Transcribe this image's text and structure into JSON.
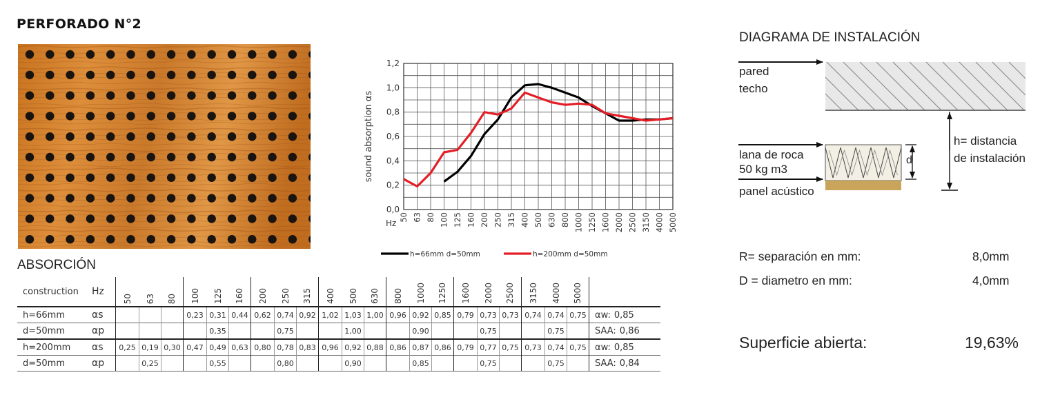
{
  "title": "PERFORADO N°2",
  "absorcion_heading": "ABSORCIÓN",
  "chart_data": {
    "type": "line",
    "ylabel": "sound absorption αs",
    "xlabel": "Hz",
    "ylim": [
      0,
      1.2
    ],
    "yticks": [
      "0,0",
      "0,2",
      "0,4",
      "0,6",
      "0,8",
      "1,0",
      "1,2"
    ],
    "categories": [
      "50",
      "63",
      "80",
      "100",
      "125",
      "160",
      "200",
      "250",
      "315",
      "400",
      "500",
      "630",
      "800",
      "1000",
      "1250",
      "1600",
      "2000",
      "2500",
      "3150",
      "4000",
      "5000"
    ],
    "series": [
      {
        "name": "h=66mm d=50mm",
        "color": "#000000",
        "values": [
          null,
          null,
          null,
          0.23,
          0.31,
          0.44,
          0.62,
          0.74,
          0.92,
          1.02,
          1.03,
          1.0,
          0.96,
          0.92,
          0.85,
          0.79,
          0.73,
          0.73,
          0.74,
          0.74,
          0.75
        ]
      },
      {
        "name": "h=200mm d=50mm",
        "color": "#e41e26",
        "values": [
          0.25,
          0.19,
          0.3,
          0.47,
          0.49,
          0.63,
          0.8,
          0.78,
          0.83,
          0.96,
          0.92,
          0.88,
          0.86,
          0.87,
          0.86,
          0.79,
          0.77,
          0.75,
          0.73,
          0.74,
          0.75
        ]
      }
    ],
    "legend_position": "bottom"
  },
  "table": {
    "construction_label": "construction",
    "hz_label": "Hz",
    "frequencies": [
      "50",
      "63",
      "80",
      "100",
      "125",
      "160",
      "200",
      "250",
      "315",
      "400",
      "500",
      "630",
      "800",
      "1000",
      "1250",
      "1600",
      "2000",
      "2500",
      "3150",
      "4000",
      "5000"
    ],
    "groups": [
      {
        "rows": [
          {
            "name": "h=66mm",
            "symbol": "αs",
            "values": [
              "",
              "",
              "",
              "0,23",
              "0,31",
              "0,44",
              "0,62",
              "0,74",
              "0,92",
              "1,02",
              "1,03",
              "1,00",
              "0,96",
              "0,92",
              "0,85",
              "0,79",
              "0,73",
              "0,73",
              "0,74",
              "0,74",
              "0,75"
            ],
            "summary_label": "αw:",
            "summary_value": "0,85"
          },
          {
            "name": "d=50mm",
            "symbol": "αp",
            "values": [
              "",
              "",
              "",
              "",
              "0,35",
              "",
              "",
              "0,75",
              "",
              "",
              "1,00",
              "",
              "",
              "0,90",
              "",
              "",
              "0,75",
              "",
              "",
              "0,75",
              ""
            ],
            "summary_label": "SAA:",
            "summary_value": "0,86"
          }
        ]
      },
      {
        "rows": [
          {
            "name": "h=200mm",
            "symbol": "αs",
            "values": [
              "0,25",
              "0,19",
              "0,30",
              "0,47",
              "0,49",
              "0,63",
              "0,80",
              "0,78",
              "0,83",
              "0,96",
              "0,92",
              "0,88",
              "0,86",
              "0,87",
              "0,86",
              "0,79",
              "0,77",
              "0,75",
              "0,73",
              "0,74",
              "0,75"
            ],
            "summary_label": "αw:",
            "summary_value": "0,85"
          },
          {
            "name": "d=50mm",
            "symbol": "αp",
            "values": [
              "",
              "0,25",
              "",
              "",
              "0,55",
              "",
              "",
              "0,80",
              "",
              "",
              "0,90",
              "",
              "",
              "0,85",
              "",
              "",
              "0,75",
              "",
              "",
              "0,75",
              ""
            ],
            "summary_label": "SAA:",
            "summary_value": "0,84"
          }
        ]
      }
    ]
  },
  "installation": {
    "heading": "DIAGRAMA DE INSTALACIÓN",
    "pared": "pared",
    "techo": "techo",
    "lana_line1": "lana de roca",
    "lana_line2": "50 kg m3",
    "panel": "panel acústico",
    "d_label": "d",
    "h_line1": "h=  distancia",
    "h_line2": "de instalación"
  },
  "specs": {
    "r_label": "R=  separación en mm:",
    "r_value": "8,0mm",
    "d_label": "D =  diametro en mm:",
    "d_value": "4,0mm",
    "superficie_label": "Superficie abierta:",
    "superficie_value": "19,63%"
  },
  "colors": {
    "wood_light": "#d8862e",
    "wood_dark": "#a9551c",
    "hole": "#1a1410",
    "series_black": "#000000",
    "series_red": "#e41e26",
    "panel_gold": "#c9a55b"
  }
}
